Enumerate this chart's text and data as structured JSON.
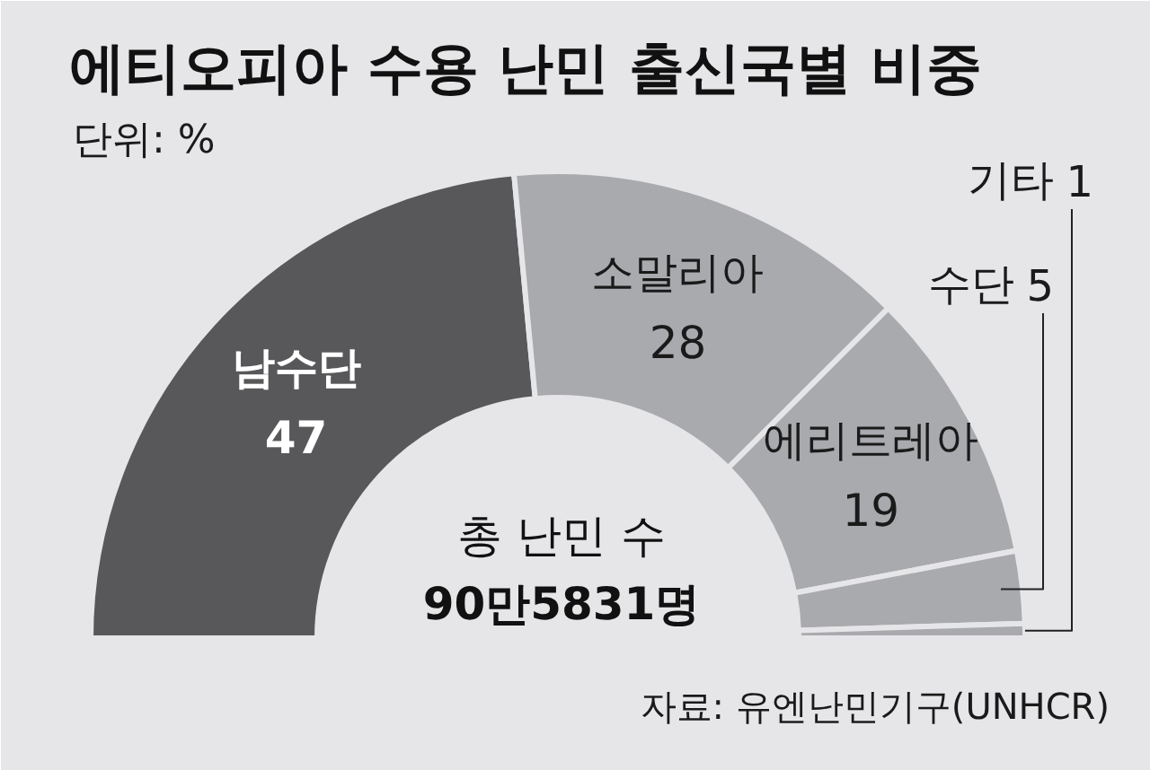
{
  "chart_data": {
    "type": "donut",
    "title": "에티오피아 수용 난민 출신국별 비중",
    "subtitle": "단위: %",
    "categories": [
      "남수단",
      "소말리아",
      "에리트레아",
      "수단",
      "기타"
    ],
    "values": [
      47,
      28,
      19,
      5,
      1
    ],
    "colors": [
      "#58585a",
      "#a9aaae",
      "#a9aaae",
      "#a9aaae",
      "#a9aaae"
    ],
    "data_labels": true,
    "annotations": [
      "총 난민 수",
      "90만5831명",
      "자료: 유엔난민기구(UNHCR)"
    ]
  }
}
